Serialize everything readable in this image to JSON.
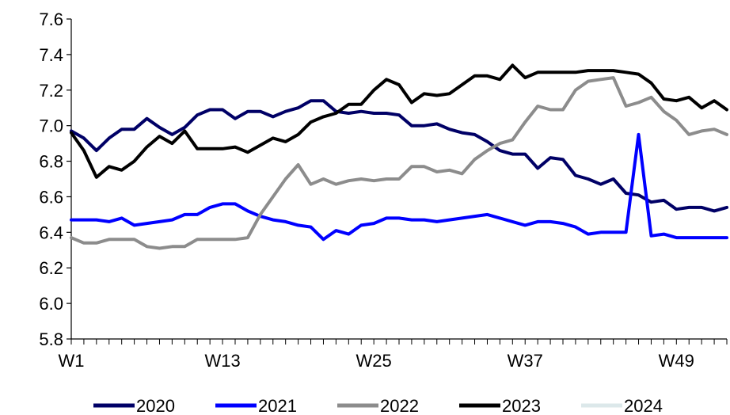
{
  "chart_data": {
    "type": "line",
    "title": "",
    "xlabel": "",
    "ylabel": "",
    "ylim": [
      5.8,
      7.6
    ],
    "yticks": [
      "5.8",
      "6.0",
      "6.2",
      "6.4",
      "6.6",
      "6.8",
      "7.0",
      "7.2",
      "7.4",
      "7.6"
    ],
    "xticks": [
      {
        "week": 1,
        "label": "W1"
      },
      {
        "week": 13,
        "label": "W13"
      },
      {
        "week": 25,
        "label": "W25"
      },
      {
        "week": 37,
        "label": "W37"
      },
      {
        "week": 49,
        "label": "W49"
      }
    ],
    "weeks": [
      1,
      53
    ],
    "legend_position": "bottom",
    "grid": false,
    "series": [
      {
        "name": "2020",
        "color": "#000066",
        "values": [
          6.97,
          6.93,
          6.86,
          6.93,
          6.98,
          6.98,
          7.04,
          6.99,
          6.95,
          6.99,
          7.06,
          7.09,
          7.09,
          7.04,
          7.08,
          7.08,
          7.05,
          7.08,
          7.1,
          7.14,
          7.14,
          7.08,
          7.07,
          7.08,
          7.07,
          7.07,
          7.06,
          7.0,
          7.0,
          7.01,
          6.98,
          6.96,
          6.95,
          6.91,
          6.86,
          6.84,
          6.84,
          6.76,
          6.82,
          6.81,
          6.72,
          6.7,
          6.67,
          6.7,
          6.62,
          6.61,
          6.57,
          6.58,
          6.53,
          6.54,
          6.54,
          6.52,
          6.54
        ]
      },
      {
        "name": "2021",
        "color": "#0000FF",
        "values": [
          6.47,
          6.47,
          6.47,
          6.46,
          6.48,
          6.44,
          6.45,
          6.46,
          6.47,
          6.5,
          6.5,
          6.54,
          6.56,
          6.56,
          6.52,
          6.49,
          6.47,
          6.46,
          6.44,
          6.43,
          6.36,
          6.41,
          6.39,
          6.44,
          6.45,
          6.48,
          6.48,
          6.47,
          6.47,
          6.46,
          6.47,
          6.48,
          6.49,
          6.5,
          6.48,
          6.46,
          6.44,
          6.46,
          6.46,
          6.45,
          6.43,
          6.39,
          6.4,
          6.4,
          6.4,
          6.95,
          6.38,
          6.39,
          6.37,
          6.37,
          6.37,
          6.37,
          6.37
        ]
      },
      {
        "name": "2022",
        "color": "#8C8C8C",
        "values": [
          6.37,
          6.34,
          6.34,
          6.36,
          6.36,
          6.36,
          6.32,
          6.31,
          6.32,
          6.32,
          6.36,
          6.36,
          6.36,
          6.36,
          6.37,
          6.5,
          6.6,
          6.7,
          6.78,
          6.67,
          6.7,
          6.67,
          6.69,
          6.7,
          6.69,
          6.7,
          6.7,
          6.77,
          6.77,
          6.74,
          6.75,
          6.73,
          6.81,
          6.86,
          6.9,
          6.92,
          7.02,
          7.11,
          7.09,
          7.09,
          7.2,
          7.25,
          7.26,
          7.27,
          7.11,
          7.13,
          7.16,
          7.08,
          7.03,
          6.95,
          6.97,
          6.98,
          6.95
        ]
      },
      {
        "name": "2023",
        "color": "#000000",
        "values": [
          6.96,
          6.86,
          6.71,
          6.77,
          6.75,
          6.8,
          6.88,
          6.94,
          6.9,
          6.97,
          6.87,
          6.87,
          6.87,
          6.88,
          6.85,
          6.89,
          6.93,
          6.91,
          6.95,
          7.02,
          7.05,
          7.07,
          7.12,
          7.12,
          7.2,
          7.26,
          7.23,
          7.13,
          7.18,
          7.17,
          7.18,
          7.23,
          7.28,
          7.28,
          7.26,
          7.34,
          7.27,
          7.3,
          7.3,
          7.3,
          7.3,
          7.31,
          7.31,
          7.31,
          7.3,
          7.29,
          7.24,
          7.15,
          7.14,
          7.16,
          7.1,
          7.14,
          7.09
        ]
      },
      {
        "name": "2024",
        "color": "#DCE8EA",
        "values": []
      }
    ]
  }
}
